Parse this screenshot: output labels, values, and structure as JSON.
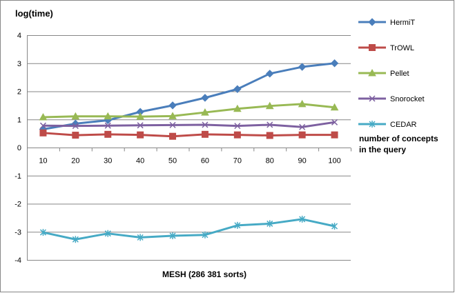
{
  "chart_data": {
    "type": "line",
    "title": "",
    "ylabel": "log(time)",
    "xlabel": "MESH (286 381 sorts)",
    "side_label_line1": "number of  concepts",
    "side_label_line2": "in  the query",
    "x": [
      10,
      20,
      30,
      40,
      50,
      60,
      70,
      80,
      90,
      100
    ],
    "x_tick_labels": [
      "10",
      "20",
      "30",
      "40",
      "50",
      "60",
      "70",
      "80",
      "90",
      "100"
    ],
    "ylim": [
      -4,
      4
    ],
    "y_ticks": [
      4,
      3,
      2,
      1,
      0,
      -1,
      -2,
      -3,
      -4
    ],
    "y_tick_labels": [
      "4",
      "3",
      "2",
      "1",
      "0",
      "-1",
      "-2",
      "-3",
      "-4"
    ],
    "grid": true,
    "legend_position": "right",
    "series": [
      {
        "name": "HermiT",
        "color": "#4a7ebb",
        "marker": "diamond",
        "values": [
          0.65,
          0.85,
          0.97,
          1.27,
          1.5,
          1.77,
          2.08,
          2.63,
          2.87,
          3.0
        ]
      },
      {
        "name": "TrOWL",
        "color": "#be4b48",
        "marker": "square",
        "values": [
          0.52,
          0.44,
          0.47,
          0.45,
          0.4,
          0.47,
          0.45,
          0.43,
          0.45,
          0.45
        ]
      },
      {
        "name": "Pellet",
        "color": "#98b954",
        "marker": "triangle",
        "values": [
          1.08,
          1.11,
          1.11,
          1.1,
          1.12,
          1.25,
          1.38,
          1.48,
          1.55,
          1.43
        ]
      },
      {
        "name": "Snorocket",
        "color": "#7d60a0",
        "marker": "x",
        "values": [
          0.78,
          0.77,
          0.78,
          0.79,
          0.8,
          0.81,
          0.77,
          0.81,
          0.73,
          0.9
        ]
      },
      {
        "name": "CEDAR",
        "color": "#46aac5",
        "marker": "star",
        "values": [
          -3.02,
          -3.27,
          -3.06,
          -3.2,
          -3.14,
          -3.11,
          -2.77,
          -2.71,
          -2.55,
          -2.8
        ]
      }
    ]
  }
}
